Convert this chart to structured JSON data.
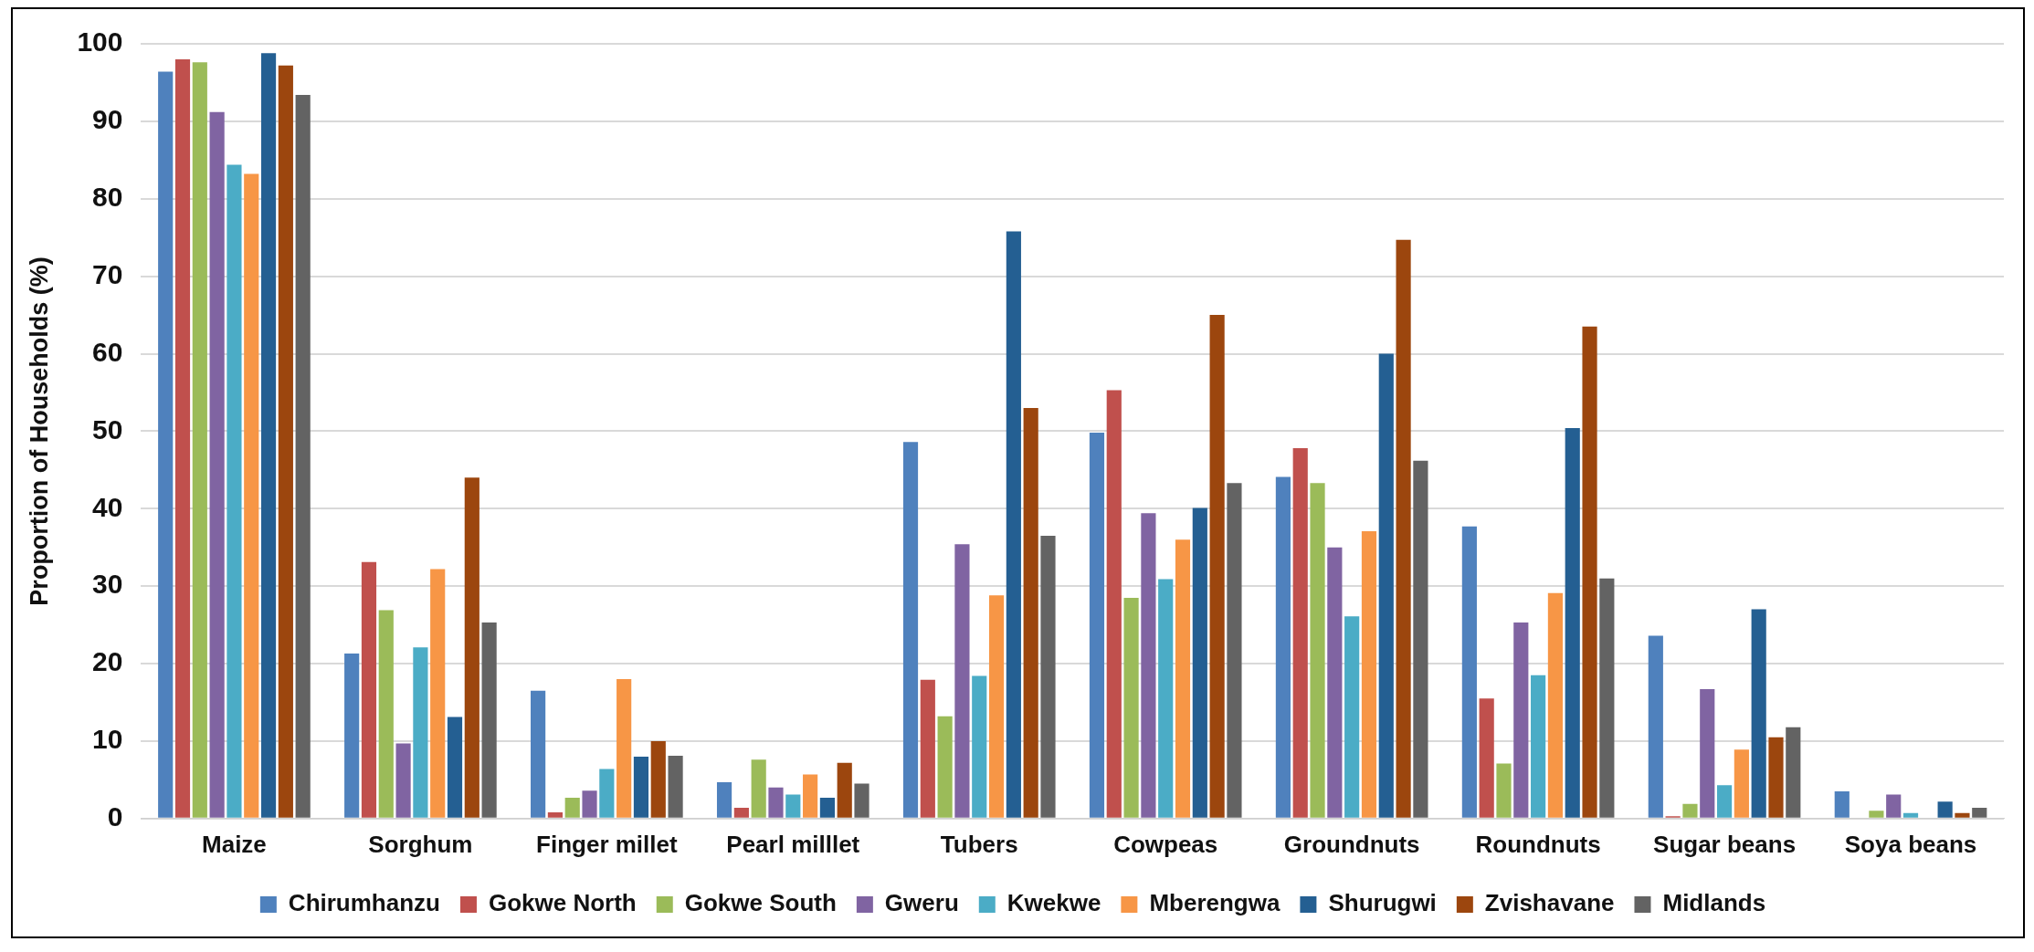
{
  "chart_data": {
    "type": "bar",
    "ylabel": "Proportion of Households (%)",
    "categories": [
      "Maize",
      "Sorghum",
      "Finger millet",
      "Pearl milllet",
      "Tubers",
      "Cowpeas",
      "Groundnuts",
      "Roundnuts",
      "Sugar beans",
      "Soya beans"
    ],
    "series": [
      {
        "name": "Chirumhanzu",
        "color": "#4f81bd",
        "values": [
          96.4,
          21.3,
          16.5,
          4.7,
          48.6,
          49.8,
          44.1,
          37.7,
          23.6,
          3.5
        ]
      },
      {
        "name": "Gokwe North",
        "color": "#c0504d",
        "values": [
          98.0,
          33.1,
          0.8,
          1.4,
          17.9,
          55.3,
          47.8,
          15.5,
          0.3,
          0
        ]
      },
      {
        "name": "Gokwe South",
        "color": "#9bbb59",
        "values": [
          97.6,
          26.9,
          2.7,
          7.6,
          13.2,
          28.5,
          43.3,
          7.1,
          1.9,
          1.0
        ]
      },
      {
        "name": "Gweru",
        "color": "#8064a2",
        "values": [
          91.2,
          9.7,
          3.6,
          4.0,
          35.4,
          39.4,
          35.0,
          25.3,
          16.7,
          3.1
        ]
      },
      {
        "name": "Kwekwe",
        "color": "#4bacc6",
        "values": [
          84.4,
          22.1,
          6.4,
          3.1,
          18.4,
          30.9,
          26.1,
          18.5,
          4.3,
          0.7
        ]
      },
      {
        "name": "Mberengwa",
        "color": "#f79646",
        "values": [
          83.2,
          32.2,
          18.0,
          5.7,
          28.8,
          36.0,
          37.1,
          29.1,
          8.9,
          0
        ]
      },
      {
        "name": "Shurugwi",
        "color": "#245f92",
        "values": [
          98.8,
          13.1,
          8.0,
          2.7,
          75.8,
          40.1,
          60.0,
          50.4,
          27.0,
          2.2
        ]
      },
      {
        "name": "Zvishavane",
        "color": "#9c460e",
        "values": [
          97.2,
          44.0,
          10.0,
          7.2,
          53.0,
          65.0,
          74.7,
          63.5,
          10.5,
          0.7
        ]
      },
      {
        "name": "Midlands",
        "color": "#636363",
        "values": [
          93.4,
          25.3,
          8.1,
          4.5,
          36.5,
          43.3,
          46.2,
          31.0,
          11.8,
          1.4
        ]
      }
    ],
    "ylim": [
      0,
      100
    ],
    "yticks": [
      0,
      10,
      20,
      30,
      40,
      50,
      60,
      70,
      80,
      90,
      100
    ],
    "grid": "y",
    "legend": "bottom"
  }
}
